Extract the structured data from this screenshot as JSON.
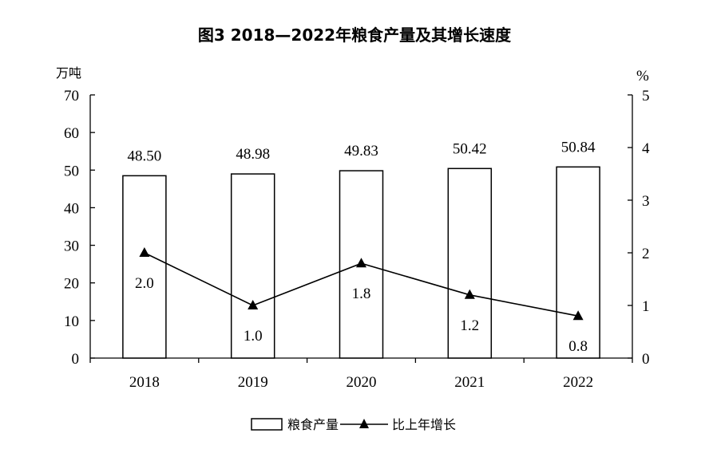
{
  "chart_data": {
    "type": "bar",
    "title": "图3  2018—2022年粮食产量及其增长速度",
    "categories": [
      "2018",
      "2019",
      "2020",
      "2021",
      "2022"
    ],
    "y_left": {
      "unit": "万吨",
      "ylim": [
        0,
        70
      ],
      "ticks": [
        0,
        10,
        20,
        30,
        40,
        50,
        60,
        70
      ]
    },
    "y_right": {
      "unit": "%",
      "ylim": [
        0,
        5
      ],
      "ticks": [
        0,
        1,
        2,
        3,
        4,
        5
      ]
    },
    "series": [
      {
        "name": "粮食产量",
        "type": "bar",
        "axis": "left",
        "values": [
          48.5,
          48.98,
          49.83,
          50.42,
          50.84
        ],
        "labels": [
          "48.50",
          "48.98",
          "49.83",
          "50.42",
          "50.84"
        ]
      },
      {
        "name": "比上年增长",
        "type": "line",
        "axis": "right",
        "marker": "triangle",
        "values": [
          2.0,
          1.0,
          1.8,
          1.2,
          0.8
        ],
        "labels": [
          "2.0",
          "1.0",
          "1.8",
          "1.2",
          "0.8"
        ]
      }
    ],
    "grid": false,
    "legend_position": "bottom"
  }
}
